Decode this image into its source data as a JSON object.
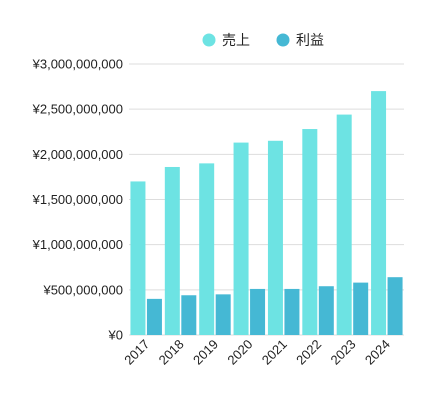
{
  "chart_data": {
    "type": "bar",
    "title": "",
    "xlabel": "",
    "ylabel": "",
    "categories": [
      "2017",
      "2018",
      "2019",
      "2020",
      "2021",
      "2022",
      "2023",
      "2024"
    ],
    "series": [
      {
        "name": "売上",
        "color": "#6de3e3",
        "values": [
          1700000000,
          1860000000,
          1900000000,
          2130000000,
          2150000000,
          2280000000,
          2440000000,
          2700000000
        ]
      },
      {
        "name": "利益",
        "color": "#45b8d4",
        "values": [
          400000000,
          440000000,
          450000000,
          510000000,
          510000000,
          540000000,
          580000000,
          640000000
        ]
      }
    ],
    "ylim": [
      0,
      3000000000
    ],
    "yticks": [
      0,
      500000000,
      1000000000,
      1500000000,
      2000000000,
      2500000000,
      3000000000
    ],
    "ytick_labels": [
      "¥0",
      "¥500,000,000",
      "¥1,000,000,000",
      "¥1,500,000,000",
      "¥2,000,000,000",
      "¥2,500,000,000",
      "¥3,000,000,000"
    ],
    "grid": true,
    "legend_position": "top-right"
  }
}
